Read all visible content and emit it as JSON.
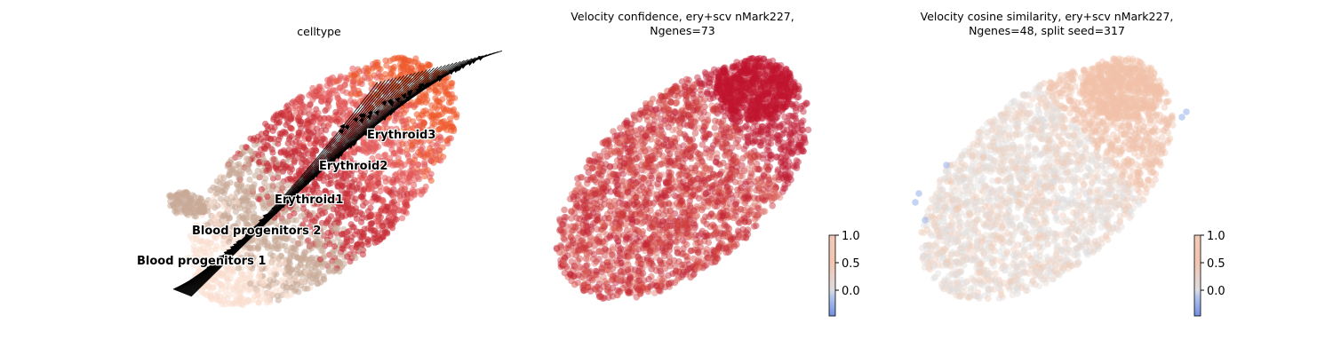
{
  "chart_data": [
    {
      "type": "scatter",
      "title": "celltype",
      "cell_type_labels": [
        "Blood progenitors 1",
        "Blood progenitors 2",
        "Erythroid1",
        "Erythroid2",
        "Erythroid3"
      ],
      "colors": {
        "Blood progenitors 1": "#f9decf",
        "Blood progenitors 2": "#c9a997",
        "Erythroid1": "#c72d36",
        "Erythroid2": "#e4595a",
        "Erythroid3": "#ef5a2b"
      },
      "overlay": "velocity streamlines with arrowheads",
      "axes_visible": false
    },
    {
      "type": "scatter",
      "title_lines": [
        "Velocity confidence, ery+scv nMark227,",
        "Ngenes=73"
      ],
      "colormap": "coolwarm",
      "colorbar": {
        "ticks": [
          "1.0",
          "0.5",
          "0.0"
        ],
        "range": [
          -0.45,
          1.0
        ]
      },
      "dominant_color": "#c42b38",
      "axes_visible": false
    },
    {
      "type": "scatter",
      "title_lines": [
        "Velocity cosine similarity, ery+scv nMark227,",
        "Ngenes=48, split seed=317"
      ],
      "colormap": "coolwarm",
      "colorbar": {
        "ticks": [
          "1.0",
          "0.5",
          "0.0"
        ],
        "range": [
          -0.45,
          1.0
        ]
      },
      "dominant_color": "#e6dcd6",
      "axes_visible": false
    }
  ]
}
